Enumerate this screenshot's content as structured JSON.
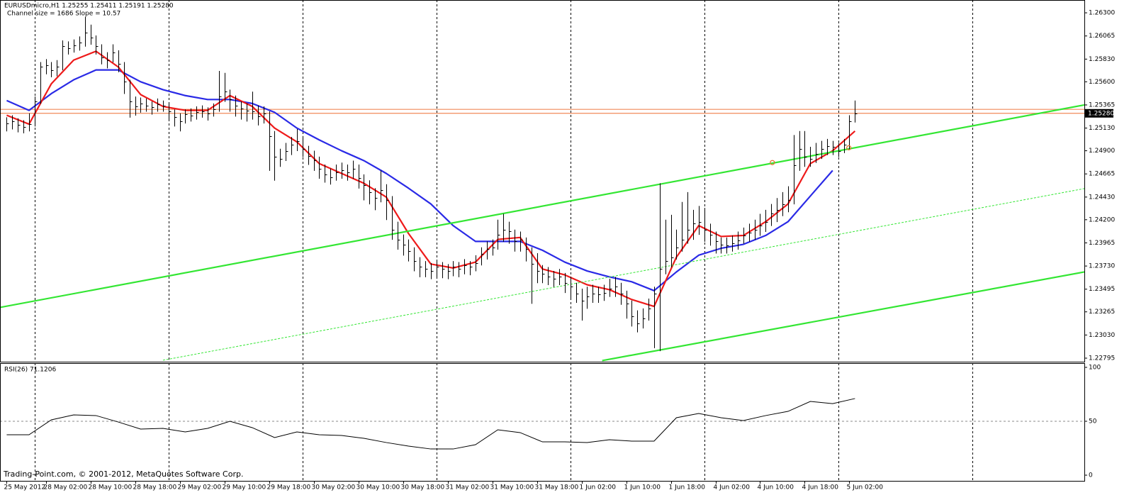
{
  "chart_data": [
    {
      "type": "ohlc",
      "title": "EURUSDmicro,H1  1.25255 1.25411 1.25191 1.25280",
      "subtitle": "Channel size = 1686 Slope = 10.57",
      "color": "#000000",
      "high": [
        1.2524,
        1.2526,
        1.2523,
        1.2521,
        1.2528,
        1.2545,
        1.258,
        1.2583,
        1.258,
        1.2582,
        1.2602,
        1.2601,
        1.2603,
        1.2606,
        1.2626,
        1.2618,
        1.2607,
        1.2598,
        1.259,
        1.2598,
        1.2592,
        1.258,
        1.2562,
        1.2545,
        1.2544,
        1.2543,
        1.254,
        1.2543,
        1.2541,
        1.2538,
        1.2532,
        1.2528,
        1.2532,
        1.2533,
        1.2535,
        1.2536,
        1.2534,
        1.2538,
        1.2571,
        1.2569,
        1.2552,
        1.2546,
        1.254,
        1.2538,
        1.255,
        1.2536,
        1.2535,
        1.253,
        1.251,
        1.2492,
        1.2498,
        1.2504,
        1.2512,
        1.2505,
        1.2495,
        1.249,
        1.2484,
        1.2476,
        1.2472,
        1.2476,
        1.2478,
        1.2476,
        1.248,
        1.2476,
        1.2466,
        1.246,
        1.2452,
        1.247,
        1.2456,
        1.2444,
        1.2418,
        1.2405,
        1.24,
        1.2392,
        1.2382,
        1.2378,
        1.2376,
        1.2378,
        1.2377,
        1.2375,
        1.2378,
        1.2377,
        1.238,
        1.2378,
        1.2384,
        1.2392,
        1.2398,
        1.24,
        1.242,
        1.2426,
        1.2418,
        1.241,
        1.2408,
        1.2402,
        1.2392,
        1.2386,
        1.2374,
        1.2372,
        1.2368,
        1.237,
        1.2366,
        1.2362,
        1.2356,
        1.235,
        1.2352,
        1.2354,
        1.2352,
        1.2354,
        1.236,
        1.2362,
        1.2356,
        1.2348,
        1.2338,
        1.2328,
        1.233,
        1.234,
        1.2352,
        1.2457,
        1.242,
        1.2425,
        1.241,
        1.2438,
        1.2448,
        1.243,
        1.2434,
        1.2432,
        1.2416,
        1.2408,
        1.2402,
        1.2402,
        1.2404,
        1.2408,
        1.2412,
        1.2416,
        1.242,
        1.2426,
        1.243,
        1.2436,
        1.2442,
        1.2448,
        1.2454,
        1.2506,
        1.251,
        1.251,
        1.2494,
        1.2498,
        1.25,
        1.2502,
        1.25,
        1.2498,
        1.2502,
        1.2526,
        1.2541
      ],
      "low": [
        1.251,
        1.2512,
        1.2509,
        1.2508,
        1.251,
        1.2515,
        1.2538,
        1.2568,
        1.2565,
        1.2566,
        1.2572,
        1.2588,
        1.259,
        1.2592,
        1.2596,
        1.2598,
        1.2588,
        1.2578,
        1.2574,
        1.258,
        1.257,
        1.2548,
        1.2524,
        1.2526,
        1.2529,
        1.253,
        1.2527,
        1.253,
        1.253,
        1.2521,
        1.2515,
        1.251,
        1.2518,
        1.252,
        1.2522,
        1.2524,
        1.2521,
        1.2525,
        1.253,
        1.254,
        1.253,
        1.2525,
        1.2522,
        1.252,
        1.2522,
        1.2516,
        1.2518,
        1.247,
        1.246,
        1.2474,
        1.248,
        1.2486,
        1.249,
        1.2484,
        1.2476,
        1.247,
        1.2462,
        1.2458,
        1.2456,
        1.246,
        1.2462,
        1.246,
        1.2462,
        1.2452,
        1.244,
        1.2436,
        1.243,
        1.2438,
        1.242,
        1.24,
        1.239,
        1.2384,
        1.2378,
        1.2368,
        1.2362,
        1.2362,
        1.236,
        1.2362,
        1.2361,
        1.236,
        1.2363,
        1.2362,
        1.2365,
        1.2364,
        1.2368,
        1.2374,
        1.238,
        1.2384,
        1.239,
        1.2398,
        1.2396,
        1.2388,
        1.2388,
        1.2378,
        1.2335,
        1.2356,
        1.2356,
        1.2354,
        1.2352,
        1.2354,
        1.2346,
        1.234,
        1.2336,
        1.2318,
        1.233,
        1.2336,
        1.2336,
        1.2338,
        1.2342,
        1.2342,
        1.2334,
        1.232,
        1.2312,
        1.2306,
        1.231,
        1.2318,
        1.229,
        1.2287,
        1.2365,
        1.2372,
        1.238,
        1.2388,
        1.2396,
        1.24,
        1.2405,
        1.2398,
        1.2394,
        1.2386,
        1.2386,
        1.2386,
        1.2388,
        1.239,
        1.2396,
        1.2398,
        1.24,
        1.2404,
        1.2408,
        1.2414,
        1.2418,
        1.2424,
        1.2428,
        1.2436,
        1.247,
        1.2474,
        1.2474,
        1.2478,
        1.2482,
        1.2486,
        1.2486,
        1.2484,
        1.2488,
        1.2492,
        1.2519
      ],
      "close": [
        1.2518,
        1.252,
        1.2516,
        1.2514,
        1.2517,
        1.254,
        1.2575,
        1.2577,
        1.2572,
        1.2575,
        1.2596,
        1.2594,
        1.2597,
        1.26,
        1.261,
        1.2605,
        1.2596,
        1.2585,
        1.2582,
        1.259,
        1.2578,
        1.256,
        1.254,
        1.2535,
        1.2538,
        1.2536,
        1.2534,
        1.2537,
        1.2536,
        1.253,
        1.2524,
        1.252,
        1.2527,
        1.2526,
        1.2529,
        1.253,
        1.2528,
        1.2532,
        1.2545,
        1.255,
        1.2542,
        1.2536,
        1.2533,
        1.2531,
        1.253,
        1.2525,
        1.2528,
        1.2505,
        1.2484,
        1.2482,
        1.249,
        1.2496,
        1.25,
        1.2492,
        1.2485,
        1.248,
        1.2472,
        1.2466,
        1.2463,
        1.2468,
        1.247,
        1.2468,
        1.2472,
        1.2462,
        1.2455,
        1.2448,
        1.2442,
        1.245,
        1.244,
        1.241,
        1.24,
        1.2395,
        1.2388,
        1.2378,
        1.2372,
        1.237,
        1.2368,
        1.2372,
        1.237,
        1.2368,
        1.2372,
        1.237,
        1.2374,
        1.2372,
        1.2376,
        1.2385,
        1.239,
        1.2392,
        1.2405,
        1.241,
        1.2408,
        1.2398,
        1.24,
        1.239,
        1.2375,
        1.2368,
        1.2365,
        1.2362,
        1.236,
        1.2362,
        1.2356,
        1.2352,
        1.2345,
        1.2338,
        1.2342,
        1.2345,
        1.2344,
        1.2346,
        1.235,
        1.2352,
        1.2345,
        1.2335,
        1.2322,
        1.2315,
        1.232,
        1.233,
        1.2345,
        1.237,
        1.2378,
        1.2382,
        1.2392,
        1.24,
        1.241,
        1.2416,
        1.2418,
        1.241,
        1.2405,
        1.2398,
        1.2395,
        1.2394,
        1.2396,
        1.2399,
        1.2404,
        1.2407,
        1.241,
        1.2414,
        1.2418,
        1.2426,
        1.243,
        1.2436,
        1.244,
        1.2475,
        1.2492,
        1.2484,
        1.2482,
        1.2487,
        1.2492,
        1.2495,
        1.2494,
        1.249,
        1.2496,
        1.252,
        1.2528
      ],
      "lines": [
        {
          "color": "#2a2ae6",
          "style": "solid",
          "x": [
            0,
            4,
            8,
            12,
            16,
            20,
            24,
            28,
            32,
            36,
            40,
            44,
            48,
            52,
            56,
            60,
            64,
            68,
            72,
            76,
            80,
            84,
            88,
            92,
            96,
            100,
            104,
            108,
            112,
            116,
            120,
            124,
            128,
            132,
            136,
            140,
            144,
            148,
            152
          ],
          "values": [
            1.2541,
            1.2531,
            1.2548,
            1.2562,
            1.2572,
            1.2572,
            1.256,
            1.2552,
            1.2546,
            1.2542,
            1.2542,
            1.2538,
            1.2529,
            1.2513,
            1.2501,
            1.249,
            1.248,
            1.2467,
            1.2452,
            1.2436,
            1.2414,
            1.2398,
            1.2398,
            1.2398,
            1.2389,
            1.2377,
            1.2368,
            1.2362,
            1.2357,
            1.2348,
            1.2367,
            1.2384,
            1.2391,
            1.2395,
            1.2404,
            1.2418,
            1.2444,
            1.247,
            null
          ]
        },
        {
          "color": "#ee1a1a",
          "style": "solid",
          "x": [
            0,
            4,
            8,
            12,
            16,
            20,
            24,
            28,
            32,
            36,
            40,
            44,
            48,
            52,
            56,
            60,
            64,
            68,
            72,
            76,
            80,
            84,
            88,
            92,
            96,
            100,
            104,
            108,
            112,
            116,
            120,
            124,
            128,
            132,
            136,
            140,
            144,
            148,
            152
          ],
          "values": [
            1.2526,
            1.2517,
            1.2558,
            1.2582,
            1.2591,
            1.2575,
            1.2547,
            1.2535,
            1.2531,
            1.2531,
            1.2546,
            1.2535,
            1.2513,
            1.2499,
            1.2477,
            1.2467,
            1.2457,
            1.2443,
            1.2406,
            1.2375,
            1.2371,
            1.2377,
            1.24,
            1.2402,
            1.237,
            1.2364,
            1.2354,
            1.2349,
            1.2339,
            1.2332,
            1.2382,
            1.2414,
            1.2403,
            1.2404,
            1.2418,
            1.2436,
            1.2477,
            1.249,
            1.251
          ]
        },
        {
          "color": "#33e633",
          "style": "solid",
          "x": [
            -1.2,
            193.1
          ],
          "values": [
            1.2331,
            1.25365
          ]
        },
        {
          "color": "#33e633",
          "style": "dashed",
          "x": [
            28,
            193.1
          ],
          "values": [
            1.22774,
            1.24516
          ]
        },
        {
          "color": "#33e633",
          "style": "solid",
          "x": [
            106.7,
            193.1
          ],
          "values": [
            1.2277,
            1.2367
          ]
        }
      ],
      "hlines": [
        {
          "value": 1.2532,
          "color": "#f08a5a"
        },
        {
          "value": 1.2528,
          "color": "#f08a5a"
        }
      ],
      "markers": {
        "color": "#e8702a",
        "x": [
          137.2,
          150.9
        ],
        "values": [
          1.2478,
          1.2493
        ]
      },
      "last_price": {
        "value": 1.2528,
        "label": "1.25280"
      },
      "xlim": [
        -1.2,
        193.1
      ],
      "ylim": [
        1.22759,
        1.2643
      ],
      "yticks": [
        {
          "value": 1.263,
          "label": "1.26300"
        },
        {
          "value": 1.26065,
          "label": "1.26065"
        },
        {
          "value": 1.2583,
          "label": "1.25830"
        },
        {
          "value": 1.256,
          "label": "1.25600"
        },
        {
          "value": 1.25365,
          "label": "1.25365"
        },
        {
          "value": 1.2513,
          "label": "1.25130"
        },
        {
          "value": 1.249,
          "label": "1.24900"
        },
        {
          "value": 1.24665,
          "label": "1.24665"
        },
        {
          "value": 1.2443,
          "label": "1.24430"
        },
        {
          "value": 1.242,
          "label": "1.24200"
        },
        {
          "value": 1.23965,
          "label": "1.23965"
        },
        {
          "value": 1.2373,
          "label": "1.23730"
        },
        {
          "value": 1.23495,
          "label": "1.23495"
        },
        {
          "value": 1.23265,
          "label": "1.23265"
        },
        {
          "value": 1.2303,
          "label": "1.23030"
        },
        {
          "value": 1.22795,
          "label": "1.22795"
        }
      ],
      "xticks": [
        {
          "value": 0,
          "label": "25 May 2012"
        },
        {
          "value": 7,
          "label": "28 May 02:00"
        },
        {
          "value": 15,
          "label": "28 May 10:00"
        },
        {
          "value": 23,
          "label": "28 May 18:00"
        },
        {
          "value": 31,
          "label": "29 May 02:00"
        },
        {
          "value": 39,
          "label": "29 May 10:00"
        },
        {
          "value": 47,
          "label": "29 May 18:00"
        },
        {
          "value": 55,
          "label": "30 May 02:00"
        },
        {
          "value": 63,
          "label": "30 May 10:00"
        },
        {
          "value": 71,
          "label": "30 May 18:00"
        },
        {
          "value": 79,
          "label": "31 May 02:00"
        },
        {
          "value": 87,
          "label": "31 May 10:00"
        },
        {
          "value": 95,
          "label": "31 May 18:00"
        },
        {
          "value": 103,
          "label": "1 Jun 02:00"
        },
        {
          "value": 111,
          "label": "1 Jun 10:00"
        },
        {
          "value": 119,
          "label": "1 Jun 18:00"
        },
        {
          "value": 127,
          "label": "4 Jun 02:00"
        },
        {
          "value": 135,
          "label": "4 Jun 10:00"
        },
        {
          "value": 143,
          "label": "4 Jun 18:00"
        },
        {
          "value": 151,
          "label": "5 Jun 02:00"
        }
      ],
      "xgrid": [
        5,
        29,
        53,
        77,
        101,
        125,
        149,
        173
      ]
    },
    {
      "type": "line",
      "title": "RSI(26) 71.1206",
      "color": "#000000",
      "x": [
        0,
        4,
        8,
        12,
        16,
        20,
        24,
        28,
        32,
        36,
        40,
        44,
        48,
        52,
        56,
        60,
        64,
        68,
        72,
        76,
        80,
        84,
        88,
        92,
        96,
        100,
        104,
        108,
        112,
        116,
        120,
        124,
        128,
        132,
        136,
        140,
        144,
        148,
        152
      ],
      "values": [
        37.5,
        37.5,
        51.3,
        55.9,
        55.3,
        49.3,
        42.8,
        43.4,
        40.1,
        43.4,
        50,
        44.1,
        34.9,
        40.1,
        37.5,
        36.8,
        34.2,
        30.3,
        27,
        24.3,
        24.3,
        28.3,
        42.1,
        39.5,
        30.9,
        30.9,
        30.3,
        32.9,
        31.6,
        31.6,
        53.3,
        57.2,
        53.3,
        50.7,
        55.3,
        59.2,
        68.4,
        66.4,
        71.1
      ],
      "xlim": [
        -1.2,
        193.1
      ],
      "ylim": [
        0,
        100
      ],
      "yticks": [
        100,
        50,
        0
      ]
    }
  ],
  "footer": "Trading-Point.com, © 2001-2012, MetaQuotes Software Corp."
}
